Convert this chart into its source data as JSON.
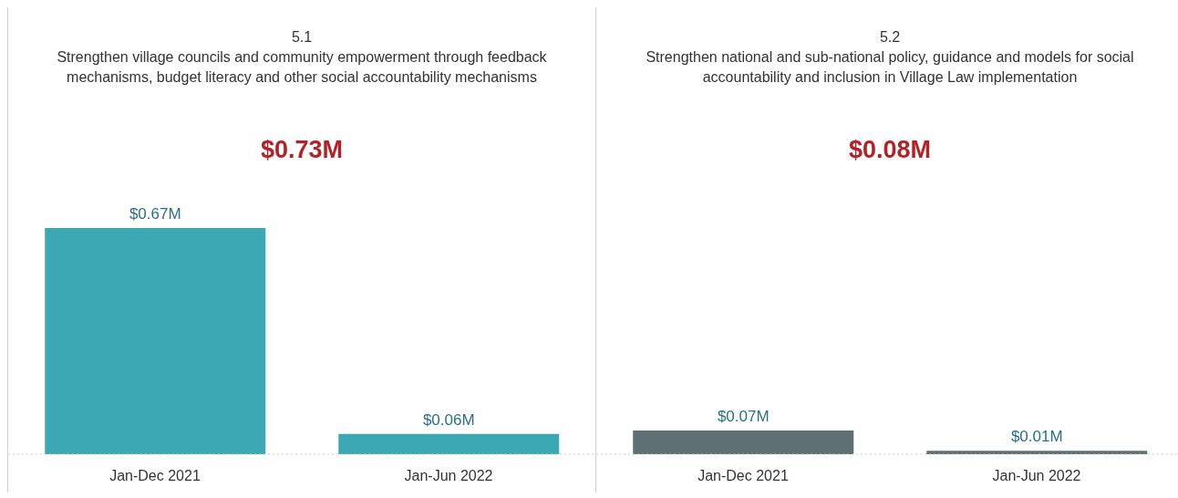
{
  "chart_data": [
    {
      "type": "bar",
      "title": "5.1",
      "subtitle": "Strengthen village councils and community empowerment through feedback mechanisms, budget literacy and other social accountability mechanisms",
      "annotations": [
        "$0.73M"
      ],
      "categories": [
        "Jan-Dec 2021",
        "Jan-Jun 2022"
      ],
      "values": [
        0.67,
        0.06
      ],
      "color": "#3ca8b4",
      "value_labels": [
        "$0.67M",
        "$0.06M"
      ]
    },
    {
      "type": "bar",
      "title": "5.2",
      "subtitle": "Strengthen national and sub-national policy, guidance and models for social accountability and inclusion in Village Law implementation",
      "annotations": [
        "$0.08M"
      ],
      "categories": [
        "Jan-Dec 2021",
        "Jan-Jun 2022"
      ],
      "values": [
        0.07,
        0.01
      ],
      "color": "#5f7073",
      "value_labels": [
        "$0.07M",
        "$0.01M"
      ]
    }
  ]
}
